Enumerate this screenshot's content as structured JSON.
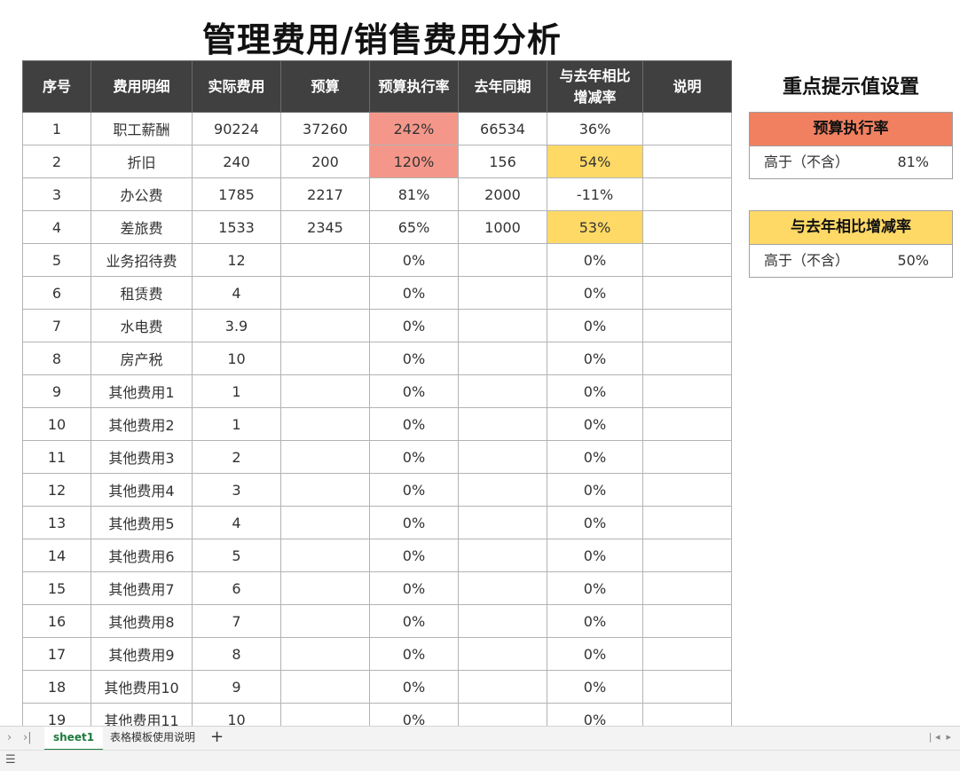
{
  "title": "管理费用/销售费用分析",
  "table": {
    "headers": [
      "序号",
      "费用明细",
      "实际费用",
      "预算",
      "预算执行率",
      "去年同期",
      "与去年相比\n增减率",
      "说明"
    ],
    "rows": [
      {
        "no": "1",
        "item": "职工薪酬",
        "actual": "90224",
        "budget": "37260",
        "rate": "242%",
        "last": "66534",
        "change": "36%",
        "note": "",
        "rate_flag": "red",
        "change_flag": ""
      },
      {
        "no": "2",
        "item": "折旧",
        "actual": "240",
        "budget": "200",
        "rate": "120%",
        "last": "156",
        "change": "54%",
        "note": "",
        "rate_flag": "red",
        "change_flag": "yellow"
      },
      {
        "no": "3",
        "item": "办公费",
        "actual": "1785",
        "budget": "2217",
        "rate": "81%",
        "last": "2000",
        "change": "-11%",
        "note": "",
        "rate_flag": "",
        "change_flag": ""
      },
      {
        "no": "4",
        "item": "差旅费",
        "actual": "1533",
        "budget": "2345",
        "rate": "65%",
        "last": "1000",
        "change": "53%",
        "note": "",
        "rate_flag": "",
        "change_flag": "yellow"
      },
      {
        "no": "5",
        "item": "业务招待费",
        "actual": "12",
        "budget": "",
        "rate": "0%",
        "last": "",
        "change": "0%",
        "note": "",
        "rate_flag": "",
        "change_flag": ""
      },
      {
        "no": "6",
        "item": "租赁费",
        "actual": "4",
        "budget": "",
        "rate": "0%",
        "last": "",
        "change": "0%",
        "note": "",
        "rate_flag": "",
        "change_flag": ""
      },
      {
        "no": "7",
        "item": "水电费",
        "actual": "3.9",
        "budget": "",
        "rate": "0%",
        "last": "",
        "change": "0%",
        "note": "",
        "rate_flag": "",
        "change_flag": ""
      },
      {
        "no": "8",
        "item": "房产税",
        "actual": "10",
        "budget": "",
        "rate": "0%",
        "last": "",
        "change": "0%",
        "note": "",
        "rate_flag": "",
        "change_flag": ""
      },
      {
        "no": "9",
        "item": "其他费用1",
        "actual": "1",
        "budget": "",
        "rate": "0%",
        "last": "",
        "change": "0%",
        "note": "",
        "rate_flag": "",
        "change_flag": ""
      },
      {
        "no": "10",
        "item": "其他费用2",
        "actual": "1",
        "budget": "",
        "rate": "0%",
        "last": "",
        "change": "0%",
        "note": "",
        "rate_flag": "",
        "change_flag": ""
      },
      {
        "no": "11",
        "item": "其他费用3",
        "actual": "2",
        "budget": "",
        "rate": "0%",
        "last": "",
        "change": "0%",
        "note": "",
        "rate_flag": "",
        "change_flag": ""
      },
      {
        "no": "12",
        "item": "其他费用4",
        "actual": "3",
        "budget": "",
        "rate": "0%",
        "last": "",
        "change": "0%",
        "note": "",
        "rate_flag": "",
        "change_flag": ""
      },
      {
        "no": "13",
        "item": "其他费用5",
        "actual": "4",
        "budget": "",
        "rate": "0%",
        "last": "",
        "change": "0%",
        "note": "",
        "rate_flag": "",
        "change_flag": ""
      },
      {
        "no": "14",
        "item": "其他费用6",
        "actual": "5",
        "budget": "",
        "rate": "0%",
        "last": "",
        "change": "0%",
        "note": "",
        "rate_flag": "",
        "change_flag": ""
      },
      {
        "no": "15",
        "item": "其他费用7",
        "actual": "6",
        "budget": "",
        "rate": "0%",
        "last": "",
        "change": "0%",
        "note": "",
        "rate_flag": "",
        "change_flag": ""
      },
      {
        "no": "16",
        "item": "其他费用8",
        "actual": "7",
        "budget": "",
        "rate": "0%",
        "last": "",
        "change": "0%",
        "note": "",
        "rate_flag": "",
        "change_flag": ""
      },
      {
        "no": "17",
        "item": "其他费用9",
        "actual": "8",
        "budget": "",
        "rate": "0%",
        "last": "",
        "change": "0%",
        "note": "",
        "rate_flag": "",
        "change_flag": ""
      },
      {
        "no": "18",
        "item": "其他费用10",
        "actual": "9",
        "budget": "",
        "rate": "0%",
        "last": "",
        "change": "0%",
        "note": "",
        "rate_flag": "",
        "change_flag": ""
      },
      {
        "no": "19",
        "item": "其他费用11",
        "actual": "10",
        "budget": "",
        "rate": "0%",
        "last": "",
        "change": "0%",
        "note": "",
        "rate_flag": "",
        "change_flag": ""
      }
    ]
  },
  "side": {
    "title": "重点提示值设置",
    "budget_box": {
      "header": "预算执行率",
      "label": "高于（不含）",
      "value": "81%",
      "color": "#f08060"
    },
    "change_box": {
      "header": "与去年相比增减率",
      "label": "高于（不含）",
      "value": "50%",
      "color": "#ffd966"
    }
  },
  "colors": {
    "header_bg": "#404040",
    "highlight_red": "#f4978a",
    "highlight_yellow": "#ffd966",
    "accent_tab": "#1d7a3c"
  },
  "tabs": [
    {
      "label": "sheet1",
      "active": true
    },
    {
      "label": "表格模板使用说明",
      "active": false
    }
  ],
  "icons": {
    "prev": "chevron-left-icon",
    "last": "chevron-last-icon",
    "add": "plus-icon",
    "status": "list-icon"
  }
}
